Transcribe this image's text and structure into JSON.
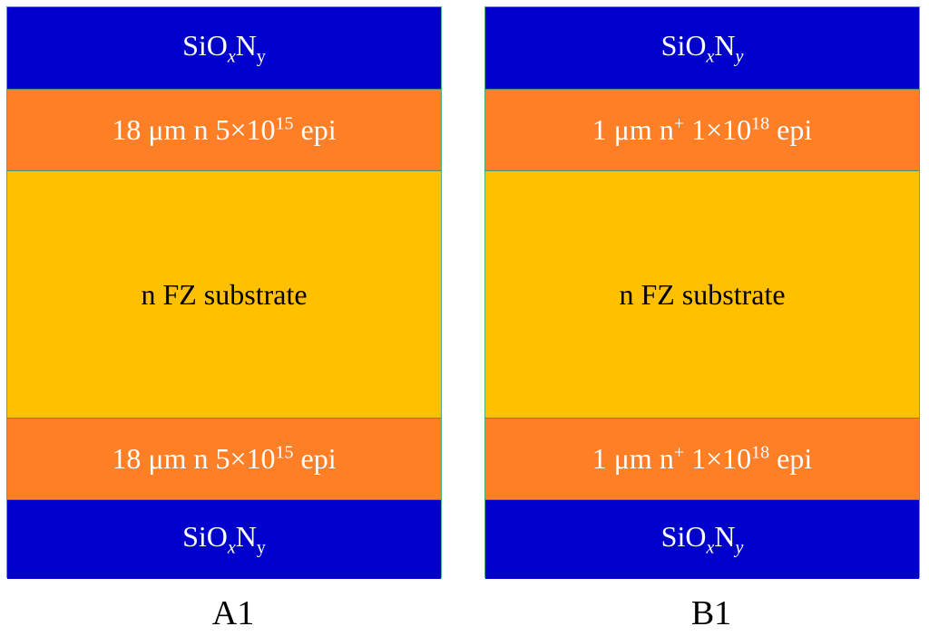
{
  "panels": [
    {
      "caption": "A1",
      "layers": [
        {
          "color": "#0000cc",
          "text_color": "#ffffff",
          "parts": [
            {
              "t": "SiO"
            },
            {
              "t": "x",
              "pos": "sub",
              "italic": true
            },
            {
              "t": "N"
            },
            {
              "t": "y",
              "pos": "sub"
            }
          ]
        },
        {
          "color": "#ff7f27",
          "text_color": "#ffffff",
          "parts": [
            {
              "t": "18 μm n 5×10"
            },
            {
              "t": "15",
              "pos": "sup"
            },
            {
              "t": " epi"
            }
          ]
        },
        {
          "color": "#ffc000",
          "text_color": "#000000",
          "parts": [
            {
              "t": "n FZ substrate"
            }
          ]
        },
        {
          "color": "#ff7f27",
          "text_color": "#ffffff",
          "parts": [
            {
              "t": "18 μm n 5×10"
            },
            {
              "t": "15",
              "pos": "sup"
            },
            {
              "t": " epi"
            }
          ]
        },
        {
          "color": "#0000cc",
          "text_color": "#ffffff",
          "parts": [
            {
              "t": "SiO"
            },
            {
              "t": "x",
              "pos": "sub",
              "italic": true
            },
            {
              "t": "N"
            },
            {
              "t": "y",
              "pos": "sub"
            }
          ]
        }
      ]
    },
    {
      "caption": "B1",
      "layers": [
        {
          "color": "#0000cc",
          "text_color": "#ffffff",
          "parts": [
            {
              "t": "SiO"
            },
            {
              "t": "x",
              "pos": "sub",
              "italic": true
            },
            {
              "t": "N"
            },
            {
              "t": "y",
              "pos": "sub",
              "italic": true
            }
          ]
        },
        {
          "color": "#ff7f27",
          "text_color": "#ffffff",
          "parts": [
            {
              "t": "1 μm n"
            },
            {
              "t": "+",
              "pos": "sup"
            },
            {
              "t": " 1×10"
            },
            {
              "t": "18",
              "pos": "sup"
            },
            {
              "t": " epi"
            }
          ]
        },
        {
          "color": "#ffc000",
          "text_color": "#000000",
          "parts": [
            {
              "t": "n FZ substrate"
            }
          ]
        },
        {
          "color": "#ff7f27",
          "text_color": "#ffffff",
          "parts": [
            {
              "t": "1 μm n"
            },
            {
              "t": "+",
              "pos": "sup"
            },
            {
              "t": " 1×10"
            },
            {
              "t": "18",
              "pos": "sup"
            },
            {
              "t": " epi"
            }
          ]
        },
        {
          "color": "#0000cc",
          "text_color": "#ffffff",
          "parts": [
            {
              "t": "SiO"
            },
            {
              "t": "x",
              "pos": "sub",
              "italic": true
            },
            {
              "t": "N"
            },
            {
              "t": "y",
              "pos": "sub",
              "italic": true
            }
          ]
        }
      ]
    }
  ]
}
